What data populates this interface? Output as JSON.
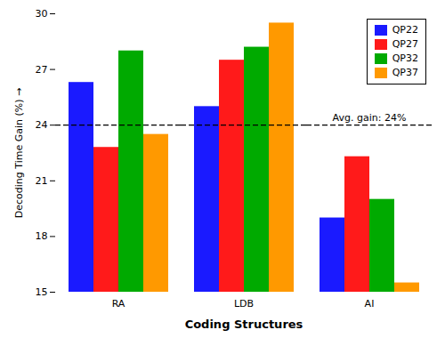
{
  "chart_data": {
    "type": "bar",
    "categories": [
      "RA",
      "LDB",
      "AI"
    ],
    "series": [
      {
        "name": "QP22",
        "color": "#1a1aff",
        "values": [
          26.3,
          25.0,
          19.0
        ]
      },
      {
        "name": "QP27",
        "color": "#ff1a1a",
        "values": [
          22.8,
          27.5,
          22.3
        ]
      },
      {
        "name": "QP32",
        "color": "#00aa00",
        "values": [
          28.0,
          28.2,
          20.0
        ]
      },
      {
        "name": "QP37",
        "color": "#ff9900",
        "values": [
          23.5,
          29.5,
          15.5
        ]
      }
    ],
    "xlabel": "Coding Structures",
    "ylabel": "Decoding Time Gain (%)",
    "ylim": [
      15,
      30
    ],
    "yticks": [
      15,
      18,
      21,
      24,
      27,
      30
    ],
    "annotations": [
      {
        "text": "Avg. gain: 24%",
        "y": 24,
        "line_style": "dashed"
      }
    ],
    "legend": "upper right",
    "grid": false
  }
}
